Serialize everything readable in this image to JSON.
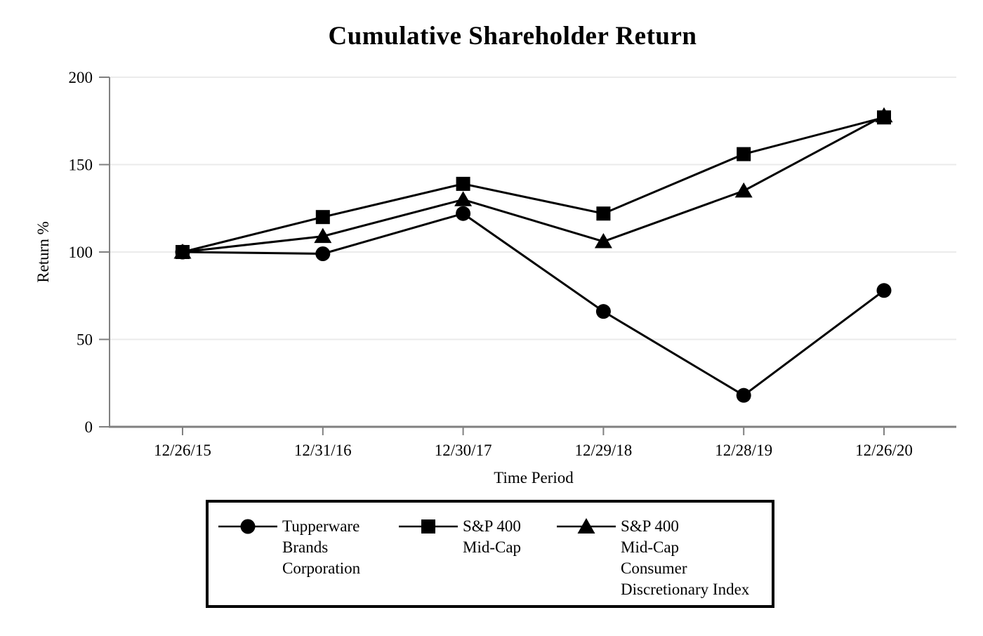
{
  "chart_data": {
    "type": "line",
    "title": "Cumulative Shareholder Return",
    "xlabel": "Time Period",
    "ylabel": "Return %",
    "ylim": [
      0,
      200
    ],
    "yticks": [
      0,
      50,
      100,
      150,
      200
    ],
    "ytick_labels": [
      "0",
      "50",
      "100",
      "150",
      "200"
    ],
    "categories": [
      "12/26/15",
      "12/31/16",
      "12/30/17",
      "12/29/18",
      "12/28/19",
      "12/26/20"
    ],
    "series": [
      {
        "name": "Tupperware Brands Corporation",
        "marker": "circle",
        "values": [
          100,
          99,
          122,
          66,
          18,
          78
        ]
      },
      {
        "name": "S&P 400 Mid-Cap",
        "marker": "square",
        "values": [
          100,
          120,
          139,
          122,
          156,
          177
        ]
      },
      {
        "name": "S&P 400 Mid-Cap Consumer Discretionary Index",
        "marker": "triangle",
        "values": [
          100,
          109,
          130,
          106,
          135,
          178
        ]
      }
    ],
    "grid": "horizontal",
    "legend_position": "bottom",
    "colors": {
      "series": "#000000",
      "axis": "#808080",
      "gridline": "#ebebeb",
      "background": "#ffffff"
    }
  },
  "legend": {
    "entries": [
      {
        "marker": "circle",
        "lines": [
          "Tupperware",
          "Brands",
          "Corporation"
        ]
      },
      {
        "marker": "square",
        "lines": [
          "S&P 400",
          "Mid-Cap"
        ]
      },
      {
        "marker": "triangle",
        "lines": [
          "S&P 400",
          "Mid-Cap",
          "Consumer",
          "Discretionary Index"
        ]
      }
    ]
  }
}
